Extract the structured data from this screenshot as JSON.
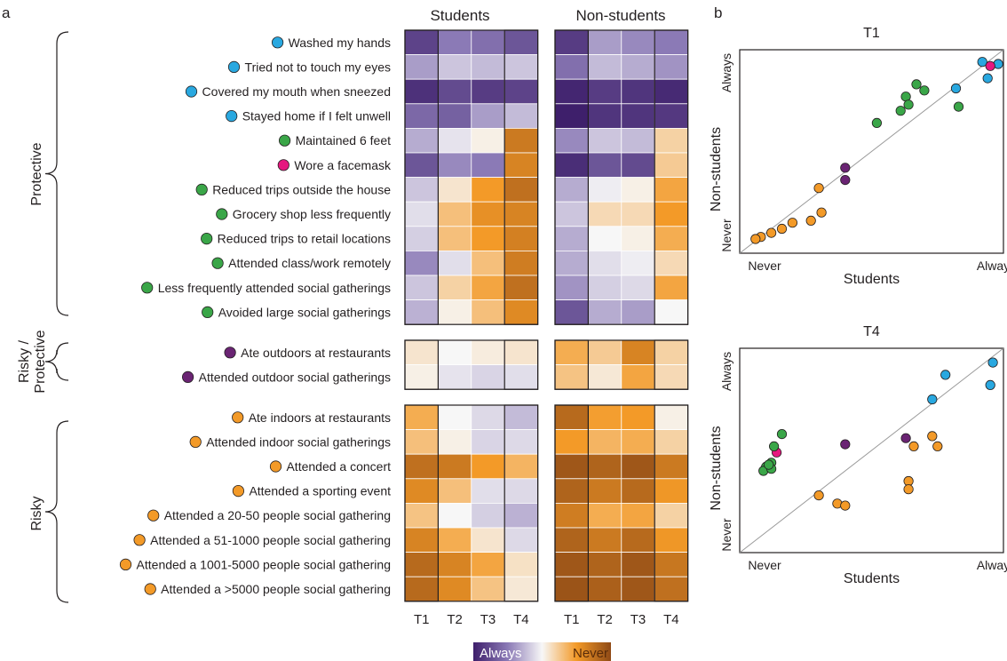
{
  "chart_data": [
    {
      "type": "heatmap",
      "panel_label": "a",
      "groups": [
        "Students",
        "Non-students"
      ],
      "columns": [
        "T1",
        "T2",
        "T3",
        "T4"
      ],
      "scale": {
        "min_label": "Always",
        "max_label": "Never",
        "low_color": "#3e1f6b",
        "mid_color": "#f7f7f7",
        "high_color": "#8f4a16"
      },
      "categories": [
        {
          "name": "Protective",
          "rows": [
            0,
            11
          ]
        },
        {
          "name": "Risky / Protective",
          "rows": [
            12,
            13
          ]
        },
        {
          "name": "Risky",
          "rows": [
            14,
            21
          ]
        }
      ],
      "behaviors": [
        {
          "label": "Washed my hands",
          "dot": "#29a8e0"
        },
        {
          "label": "Tried not to touch my eyes",
          "dot": "#29a8e0"
        },
        {
          "label": "Covered my mouth when sneezed",
          "dot": "#29a8e0"
        },
        {
          "label": "Stayed home if I felt unwell",
          "dot": "#29a8e0"
        },
        {
          "label": "Maintained 6 feet",
          "dot": "#3aa648"
        },
        {
          "label": "Wore a facemask",
          "dot": "#e5187f"
        },
        {
          "label": "Reduced trips outside the house",
          "dot": "#3aa648"
        },
        {
          "label": "Grocery shop less frequently",
          "dot": "#3aa648"
        },
        {
          "label": "Reduced trips to retail locations",
          "dot": "#3aa648"
        },
        {
          "label": "Attended class/work remotely",
          "dot": "#3aa648"
        },
        {
          "label": "Less frequently attended social gatherings",
          "dot": "#3aa648"
        },
        {
          "label": "Avoided large social gatherings",
          "dot": "#3aa648"
        },
        {
          "label": "Ate outdoors at restaurants",
          "dot": "#6a2473"
        },
        {
          "label": "Attended outdoor social gatherings",
          "dot": "#6a2473"
        },
        {
          "label": "Ate indoors at restaurants",
          "dot": "#f39a28"
        },
        {
          "label": "Attended indoor social gatherings",
          "dot": "#f39a28"
        },
        {
          "label": "Attended a concert",
          "dot": "#f39a28"
        },
        {
          "label": "Attended a sporting event",
          "dot": "#f39a28"
        },
        {
          "label": "Attended a 20-50 people social gathering",
          "dot": "#f39a28"
        },
        {
          "label": "Attended a 51-1000 people social gathering",
          "dot": "#f39a28"
        },
        {
          "label": "Attended a 1001-5000 people social gathering",
          "dot": "#f39a28"
        },
        {
          "label": "Attended a >5000 people social gathering",
          "dot": "#f39a28"
        }
      ],
      "values": {
        "Students": [
          [
            0.1,
            0.25,
            0.22,
            0.15
          ],
          [
            0.32,
            0.4,
            0.38,
            0.4
          ],
          [
            0.05,
            0.12,
            0.08,
            0.1
          ],
          [
            0.2,
            0.18,
            0.32,
            0.38
          ],
          [
            0.35,
            0.46,
            0.52,
            0.85
          ],
          [
            0.15,
            0.28,
            0.25,
            0.82
          ],
          [
            0.4,
            0.55,
            0.75,
            0.88
          ],
          [
            0.45,
            0.65,
            0.78,
            0.82
          ],
          [
            0.42,
            0.65,
            0.75,
            0.83
          ],
          [
            0.28,
            0.45,
            0.65,
            0.84
          ],
          [
            0.4,
            0.6,
            0.72,
            0.88
          ],
          [
            0.36,
            0.52,
            0.65,
            0.8
          ],
          [
            0.55,
            0.5,
            0.53,
            0.55
          ],
          [
            0.52,
            0.46,
            0.43,
            0.45
          ],
          [
            0.7,
            0.5,
            0.44,
            0.38
          ],
          [
            0.65,
            0.52,
            0.43,
            0.44
          ],
          [
            0.88,
            0.85,
            0.75,
            0.68
          ],
          [
            0.8,
            0.65,
            0.45,
            0.44
          ],
          [
            0.64,
            0.5,
            0.42,
            0.36
          ],
          [
            0.82,
            0.7,
            0.55,
            0.44
          ],
          [
            0.9,
            0.82,
            0.72,
            0.56
          ],
          [
            0.9,
            0.8,
            0.64,
            0.54
          ]
        ],
        "Non-students": [
          [
            0.08,
            0.32,
            0.28,
            0.25
          ],
          [
            0.22,
            0.38,
            0.35,
            0.3
          ],
          [
            0.02,
            0.08,
            0.06,
            0.03
          ],
          [
            0.0,
            0.06,
            0.06,
            0.07
          ],
          [
            0.28,
            0.4,
            0.38,
            0.6
          ],
          [
            0.04,
            0.15,
            0.12,
            0.62
          ],
          [
            0.35,
            0.48,
            0.52,
            0.72
          ],
          [
            0.4,
            0.58,
            0.58,
            0.75
          ],
          [
            0.35,
            0.5,
            0.52,
            0.7
          ],
          [
            0.35,
            0.45,
            0.48,
            0.58
          ],
          [
            0.3,
            0.42,
            0.44,
            0.72
          ],
          [
            0.15,
            0.35,
            0.32,
            0.5
          ],
          [
            0.7,
            0.62,
            0.82,
            0.6
          ],
          [
            0.64,
            0.54,
            0.72,
            0.58
          ],
          [
            0.9,
            0.74,
            0.75,
            0.52
          ],
          [
            0.75,
            0.68,
            0.7,
            0.6
          ],
          [
            0.96,
            0.92,
            0.96,
            0.85
          ],
          [
            0.92,
            0.85,
            0.9,
            0.76
          ],
          [
            0.84,
            0.7,
            0.72,
            0.6
          ],
          [
            0.92,
            0.85,
            0.9,
            0.76
          ],
          [
            0.96,
            0.92,
            0.96,
            0.86
          ],
          [
            0.97,
            0.93,
            0.96,
            0.88
          ]
        ]
      }
    },
    {
      "type": "scatter",
      "panel_label": "b",
      "title": "T1",
      "xlabel": "Students",
      "ylabel": "Non-students",
      "tick_low": "Never",
      "tick_high": "Always",
      "xlim": [
        0,
        1
      ],
      "ylim": [
        0,
        1
      ],
      "identity_line": true,
      "points": [
        {
          "x": 0.92,
          "y": 0.94,
          "color": "#29a8e0"
        },
        {
          "x": 0.98,
          "y": 0.93,
          "color": "#29a8e0"
        },
        {
          "x": 0.94,
          "y": 0.86,
          "color": "#29a8e0"
        },
        {
          "x": 0.82,
          "y": 0.81,
          "color": "#29a8e0"
        },
        {
          "x": 0.95,
          "y": 0.92,
          "color": "#e5187f"
        },
        {
          "x": 0.67,
          "y": 0.83,
          "color": "#3aa648"
        },
        {
          "x": 0.7,
          "y": 0.8,
          "color": "#3aa648"
        },
        {
          "x": 0.63,
          "y": 0.77,
          "color": "#3aa648"
        },
        {
          "x": 0.64,
          "y": 0.73,
          "color": "#3aa648"
        },
        {
          "x": 0.61,
          "y": 0.7,
          "color": "#3aa648"
        },
        {
          "x": 0.83,
          "y": 0.72,
          "color": "#3aa648"
        },
        {
          "x": 0.52,
          "y": 0.64,
          "color": "#3aa648"
        },
        {
          "x": 0.4,
          "y": 0.42,
          "color": "#6a2473"
        },
        {
          "x": 0.4,
          "y": 0.36,
          "color": "#6a2473"
        },
        {
          "x": 0.3,
          "y": 0.32,
          "color": "#f39a28"
        },
        {
          "x": 0.31,
          "y": 0.2,
          "color": "#f39a28"
        },
        {
          "x": 0.27,
          "y": 0.16,
          "color": "#f39a28"
        },
        {
          "x": 0.2,
          "y": 0.15,
          "color": "#f39a28"
        },
        {
          "x": 0.16,
          "y": 0.12,
          "color": "#f39a28"
        },
        {
          "x": 0.12,
          "y": 0.1,
          "color": "#f39a28"
        },
        {
          "x": 0.08,
          "y": 0.08,
          "color": "#f39a28"
        },
        {
          "x": 0.06,
          "y": 0.07,
          "color": "#f39a28"
        }
      ]
    },
    {
      "type": "scatter",
      "panel_label": "",
      "title": "T4",
      "xlabel": "Students",
      "ylabel": "Non-students",
      "tick_low": "Never",
      "tick_high": "Always",
      "xlim": [
        0,
        1
      ],
      "ylim": [
        0,
        1
      ],
      "identity_line": true,
      "points": [
        {
          "x": 0.96,
          "y": 0.93,
          "color": "#29a8e0"
        },
        {
          "x": 0.78,
          "y": 0.87,
          "color": "#29a8e0"
        },
        {
          "x": 0.95,
          "y": 0.82,
          "color": "#29a8e0"
        },
        {
          "x": 0.73,
          "y": 0.75,
          "color": "#29a8e0"
        },
        {
          "x": 0.14,
          "y": 0.49,
          "color": "#e5187f"
        },
        {
          "x": 0.16,
          "y": 0.58,
          "color": "#3aa648"
        },
        {
          "x": 0.13,
          "y": 0.52,
          "color": "#3aa648"
        },
        {
          "x": 0.12,
          "y": 0.44,
          "color": "#3aa648"
        },
        {
          "x": 0.1,
          "y": 0.42,
          "color": "#3aa648"
        },
        {
          "x": 0.09,
          "y": 0.4,
          "color": "#3aa648"
        },
        {
          "x": 0.12,
          "y": 0.41,
          "color": "#3aa648"
        },
        {
          "x": 0.11,
          "y": 0.43,
          "color": "#3aa648"
        },
        {
          "x": 0.4,
          "y": 0.53,
          "color": "#6a2473"
        },
        {
          "x": 0.63,
          "y": 0.56,
          "color": "#6a2473"
        },
        {
          "x": 0.66,
          "y": 0.52,
          "color": "#f39a28"
        },
        {
          "x": 0.73,
          "y": 0.57,
          "color": "#f39a28"
        },
        {
          "x": 0.75,
          "y": 0.52,
          "color": "#f39a28"
        },
        {
          "x": 0.64,
          "y": 0.35,
          "color": "#f39a28"
        },
        {
          "x": 0.64,
          "y": 0.31,
          "color": "#f39a28"
        },
        {
          "x": 0.3,
          "y": 0.28,
          "color": "#f39a28"
        },
        {
          "x": 0.37,
          "y": 0.24,
          "color": "#f39a28"
        },
        {
          "x": 0.4,
          "y": 0.23,
          "color": "#f39a28"
        }
      ]
    }
  ]
}
